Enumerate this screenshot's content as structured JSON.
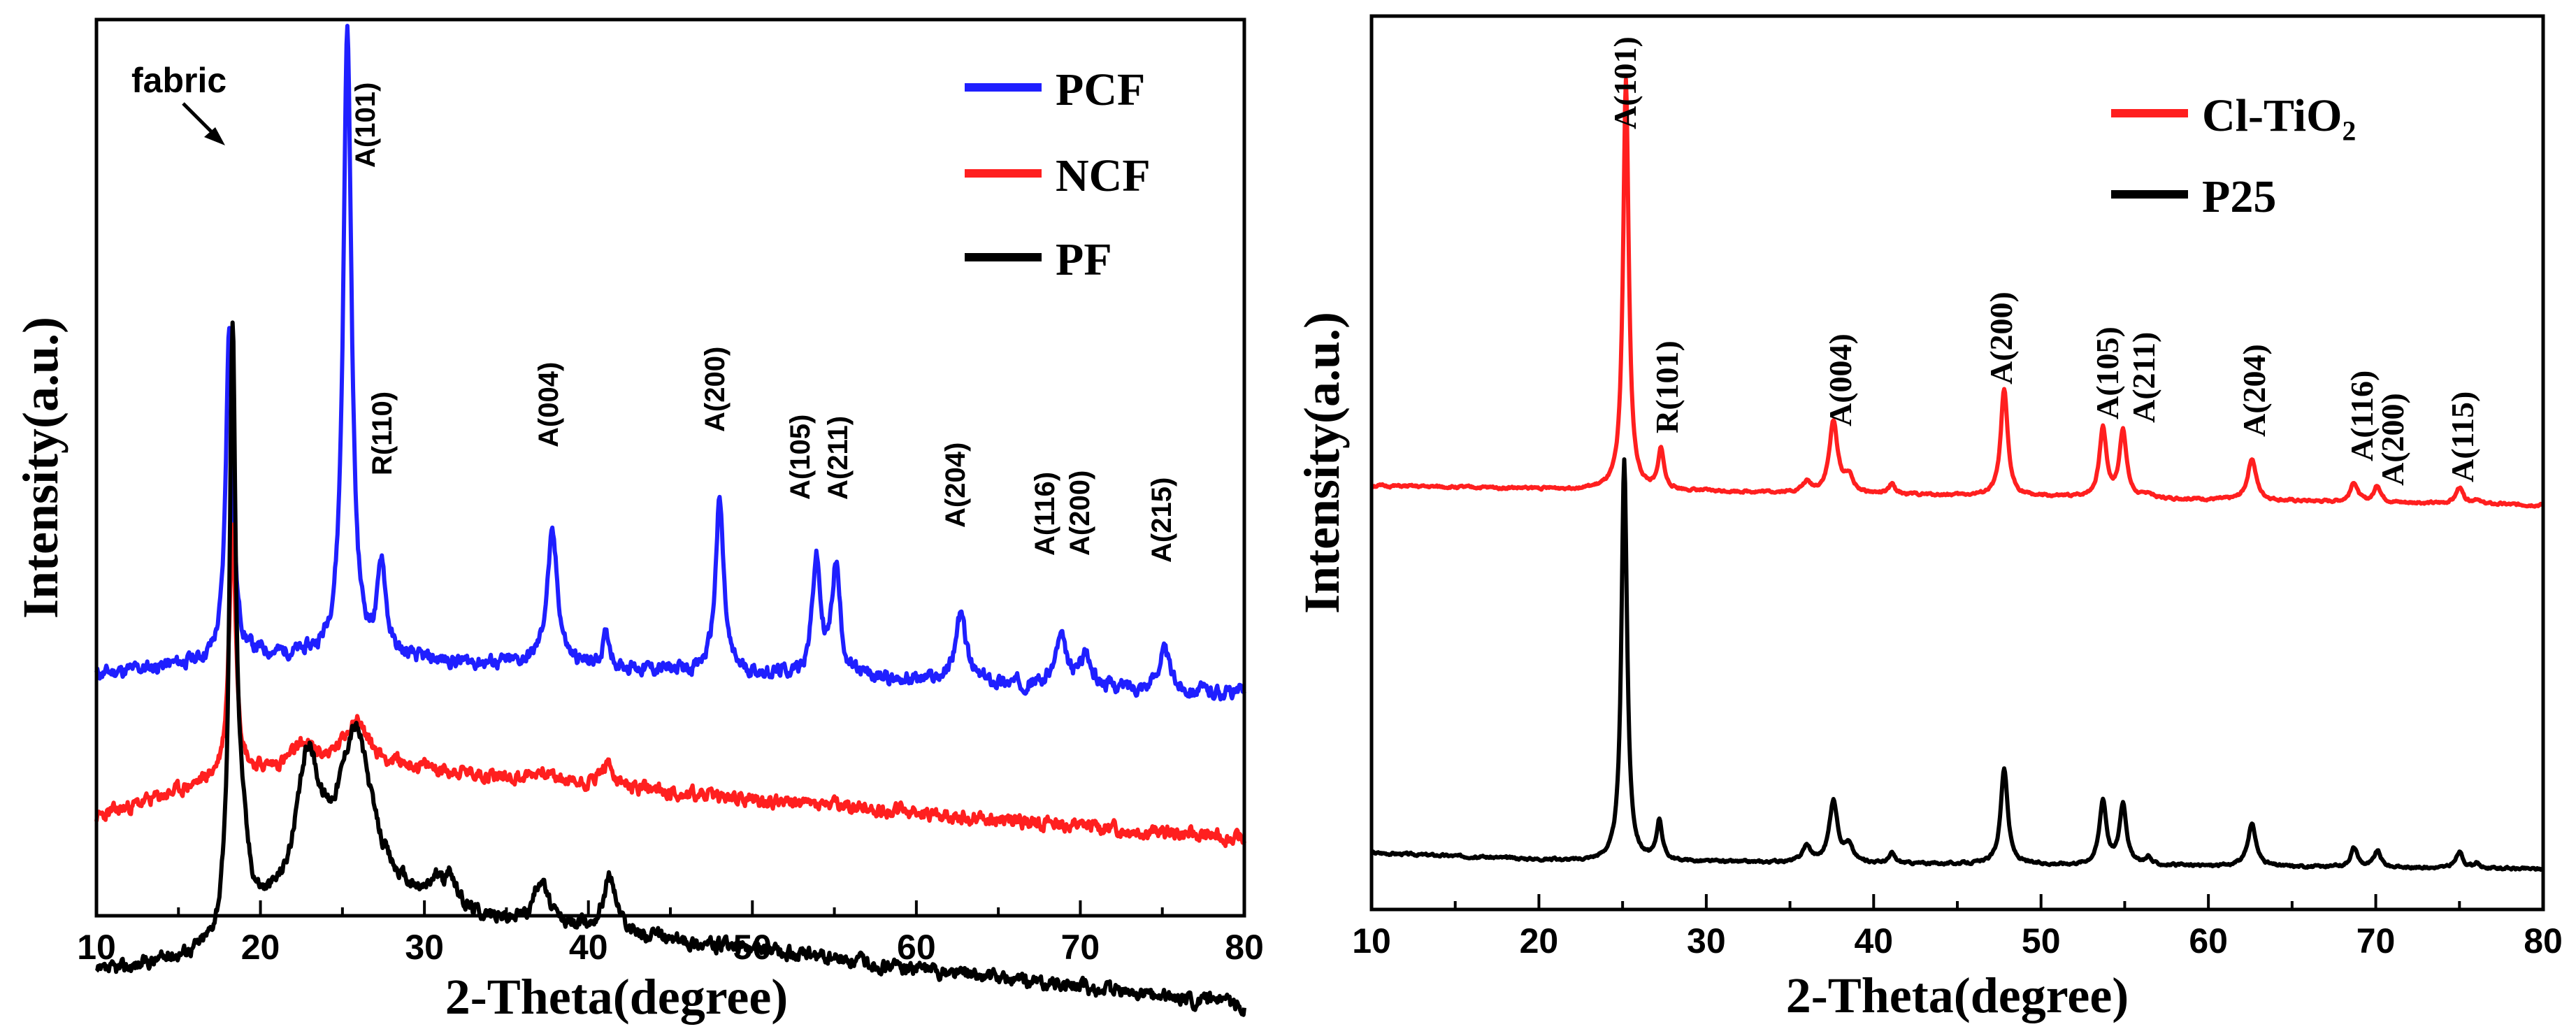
{
  "chart_data": [
    {
      "type": "line",
      "panel": "left",
      "title": "",
      "xlabel": "2-Theta(degree)",
      "ylabel": "Intensity(a.u.)",
      "xlim": [
        10,
        80
      ],
      "xticks": [
        10,
        20,
        30,
        40,
        50,
        60,
        70,
        80
      ],
      "legend": {
        "placement": "top-right",
        "entries": [
          "PCF",
          "NCF",
          "PF"
        ]
      },
      "series": [
        {
          "name": "PCF",
          "color": "#1f1fff",
          "baseline": [
            [
              10,
              0.0
            ],
            [
              20,
              0.09
            ],
            [
              27,
              0.07
            ],
            [
              80,
              -0.09
            ]
          ],
          "peaks": [
            [
              18.1,
              1.6,
              0.25
            ],
            [
              25.3,
              3.0,
              0.3
            ],
            [
              27.4,
              0.44,
              0.3
            ],
            [
              37.8,
              0.62,
              0.4
            ],
            [
              41.1,
              0.15,
              0.3
            ],
            [
              48.0,
              0.82,
              0.3
            ],
            [
              53.9,
              0.55,
              0.3
            ],
            [
              55.1,
              0.53,
              0.3
            ],
            [
              62.7,
              0.32,
              0.4
            ],
            [
              68.8,
              0.22,
              0.4
            ],
            [
              70.3,
              0.15,
              0.4
            ],
            [
              75.1,
              0.19,
              0.4
            ]
          ]
        },
        {
          "name": "NCF",
          "color": "#ff1f1f",
          "baseline": [
            [
              10,
              0.0
            ],
            [
              18,
              0.2
            ],
            [
              26,
              0.27
            ],
            [
              40,
              0.15
            ],
            [
              80,
              -0.1
            ]
          ],
          "peaks": [
            [
              18.3,
              1.2,
              0.25
            ],
            [
              22.6,
              0.1,
              0.8
            ],
            [
              25.8,
              0.2,
              0.8
            ],
            [
              37.2,
              0.05,
              0.6
            ],
            [
              41.1,
              0.1,
              0.6
            ]
          ]
        },
        {
          "name": "PF",
          "color": "#000000",
          "baseline": [
            [
              10,
              0.0
            ],
            [
              17,
              0.1
            ],
            [
              19,
              0.22
            ],
            [
              24,
              0.4
            ],
            [
              28,
              0.35
            ],
            [
              35,
              0.25
            ],
            [
              50,
              0.12
            ],
            [
              80,
              -0.15
            ]
          ],
          "peaks": [
            [
              18.3,
              2.7,
              0.22
            ],
            [
              18.8,
              0.4,
              0.5
            ],
            [
              22.9,
              0.62,
              0.8
            ],
            [
              25.8,
              0.76,
              1.2
            ],
            [
              30.7,
              0.1,
              0.4
            ],
            [
              31.6,
              0.14,
              0.4
            ],
            [
              37.1,
              0.22,
              0.5
            ],
            [
              41.3,
              0.27,
              0.5
            ]
          ]
        }
      ],
      "peak_labels": [
        "fabric",
        "A(101)",
        "R(110)",
        "A(004)",
        "A(200)",
        "A(105)",
        "A(211)",
        "A(204)",
        "A(116)",
        "A(200)",
        "A(215)"
      ]
    },
    {
      "type": "line",
      "panel": "right",
      "title": "",
      "xlabel": "2-Theta(degree)",
      "ylabel": "Intensity(a.u.)",
      "xlim": [
        10,
        80
      ],
      "xticks": [
        10,
        20,
        30,
        40,
        50,
        60,
        70,
        80
      ],
      "legend": {
        "placement": "top-right",
        "entries": [
          "Cl-TiO₂",
          "P25"
        ]
      },
      "series": [
        {
          "name": "Cl-TiO₂",
          "color": "#ff1f1f",
          "baseline": [
            [
              10,
              0.0
            ],
            [
              80,
              -0.12
            ]
          ],
          "peaks": [
            [
              25.2,
              2.55,
              0.2
            ],
            [
              27.3,
              0.25,
              0.2
            ],
            [
              36.0,
              0.06,
              0.3
            ],
            [
              37.6,
              0.44,
              0.3
            ],
            [
              38.5,
              0.1,
              0.3
            ],
            [
              41.1,
              0.06,
              0.2
            ],
            [
              47.8,
              0.66,
              0.25
            ],
            [
              53.7,
              0.43,
              0.25
            ],
            [
              54.9,
              0.42,
              0.25
            ],
            [
              56.4,
              0.03,
              0.2
            ],
            [
              62.6,
              0.26,
              0.3
            ],
            [
              68.7,
              0.12,
              0.25
            ],
            [
              70.1,
              0.1,
              0.25
            ],
            [
              75.0,
              0.1,
              0.25
            ],
            [
              76.0,
              0.03,
              0.2
            ]
          ]
        },
        {
          "name": "P25",
          "color": "#000000",
          "baseline": [
            [
              10,
              0.0
            ],
            [
              15,
              -0.02
            ],
            [
              22,
              -0.05
            ],
            [
              80,
              -0.1
            ]
          ],
          "peaks": [
            [
              25.1,
              2.5,
              0.2
            ],
            [
              27.2,
              0.25,
              0.2
            ],
            [
              36.0,
              0.1,
              0.3
            ],
            [
              37.6,
              0.38,
              0.3
            ],
            [
              38.5,
              0.1,
              0.3
            ],
            [
              41.1,
              0.06,
              0.2
            ],
            [
              47.8,
              0.6,
              0.25
            ],
            [
              53.7,
              0.4,
              0.25
            ],
            [
              54.9,
              0.38,
              0.25
            ],
            [
              56.4,
              0.05,
              0.2
            ],
            [
              62.6,
              0.26,
              0.3
            ],
            [
              68.7,
              0.12,
              0.25
            ],
            [
              70.1,
              0.1,
              0.25
            ],
            [
              75.0,
              0.1,
              0.25
            ],
            [
              76.0,
              0.03,
              0.2
            ]
          ]
        }
      ],
      "peak_labels": [
        "A(101)",
        "R(101)",
        "A(004)",
        "A(200)",
        "A(105)",
        "A(211)",
        "A(204)",
        "A(116)",
        "A(200)",
        "A(115)"
      ]
    }
  ]
}
